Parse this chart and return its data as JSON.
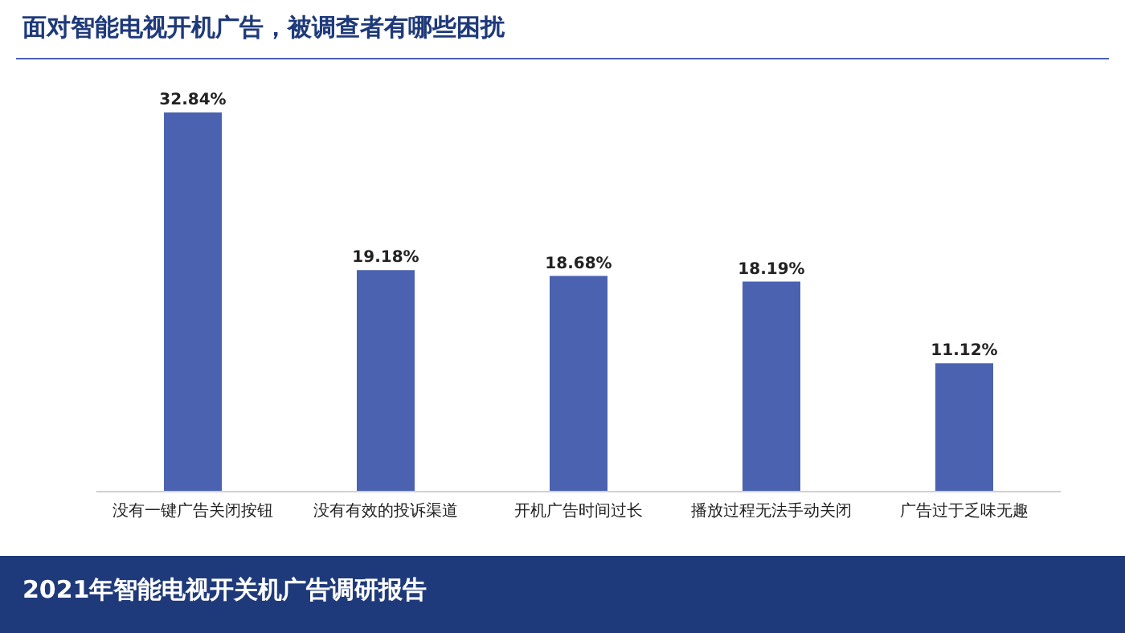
{
  "chart_data": {
    "type": "bar",
    "title": "面对智能电视开机广告，被调查者有哪些困扰",
    "categories": [
      "没有一键广告关闭按钮",
      "没有有效的投诉渠道",
      "开机广告时间过长",
      "播放过程无法手动关闭",
      "广告过于乏味无趣"
    ],
    "values": [
      32.84,
      19.18,
      18.68,
      18.19,
      11.12
    ],
    "color": "#4a62b0",
    "value_labels": [
      "32.84%",
      "19.18%",
      "18.68%",
      "18.19%",
      "11.12%"
    ],
    "annotations": [
      "2021年智能电视开关机广告调研报告"
    ]
  }
}
